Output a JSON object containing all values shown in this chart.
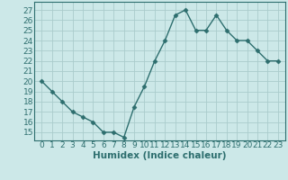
{
  "x": [
    0,
    1,
    2,
    3,
    4,
    5,
    6,
    7,
    8,
    9,
    10,
    11,
    12,
    13,
    14,
    15,
    16,
    17,
    18,
    19,
    20,
    21,
    22,
    23
  ],
  "y": [
    20,
    19,
    18,
    17,
    16.5,
    16,
    15,
    15,
    14.5,
    17.5,
    19.5,
    22,
    24,
    26.5,
    27,
    25,
    25,
    26.5,
    25,
    24,
    24,
    23,
    22,
    22
  ],
  "line_color": "#2d6e6e",
  "marker": "D",
  "markersize": 2.5,
  "bg_color": "#cce8e8",
  "grid_color": "#aacccc",
  "xlabel": "Humidex (Indice chaleur)",
  "ylabel_ticks": [
    15,
    16,
    17,
    18,
    19,
    20,
    21,
    22,
    23,
    24,
    25,
    26,
    27
  ],
  "ylim": [
    14.2,
    27.8
  ],
  "xlim": [
    -0.7,
    23.7
  ],
  "xticks": [
    0,
    1,
    2,
    3,
    4,
    5,
    6,
    7,
    8,
    9,
    10,
    11,
    12,
    13,
    14,
    15,
    16,
    17,
    18,
    19,
    20,
    21,
    22,
    23
  ],
  "tick_fontsize": 6.5,
  "xlabel_fontsize": 7.5,
  "linewidth": 1.0
}
